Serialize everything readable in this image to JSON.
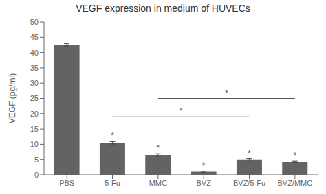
{
  "chart_data": {
    "type": "bar",
    "title": "VEGF expression in medium of HUVECs",
    "ylabel": "VEGF (pg/ml)",
    "categories": [
      "PBS",
      "5-Fu",
      "MMC",
      "BVZ",
      "BVZ/5-Fu",
      "BVZ/MMC"
    ],
    "values": [
      42.5,
      10.5,
      6.5,
      1.0,
      5.0,
      4.2
    ],
    "errors": [
      0.4,
      0.4,
      0.4,
      0.15,
      0.25,
      0.25
    ],
    "color": "#636363",
    "ylim": [
      0,
      50
    ],
    "yticks": [
      0,
      5,
      10,
      15,
      20,
      25,
      30,
      35,
      40,
      45,
      50
    ],
    "grid": false,
    "annotations": [
      {
        "text": "*",
        "category": "5-Fu"
      },
      {
        "text": "*",
        "category": "MMC"
      },
      {
        "text": "*",
        "category": "BVZ"
      },
      {
        "text": "*",
        "category": "BVZ/5-Fu"
      },
      {
        "text": "*",
        "category": "BVZ/MMC"
      }
    ],
    "brackets": [
      {
        "from": "5-Fu",
        "to": "BVZ/5-Fu",
        "y": 19.0,
        "label": "*"
      },
      {
        "from": "MMC",
        "to": "BVZ/MMC",
        "y": 25.0,
        "label": "*"
      }
    ]
  }
}
